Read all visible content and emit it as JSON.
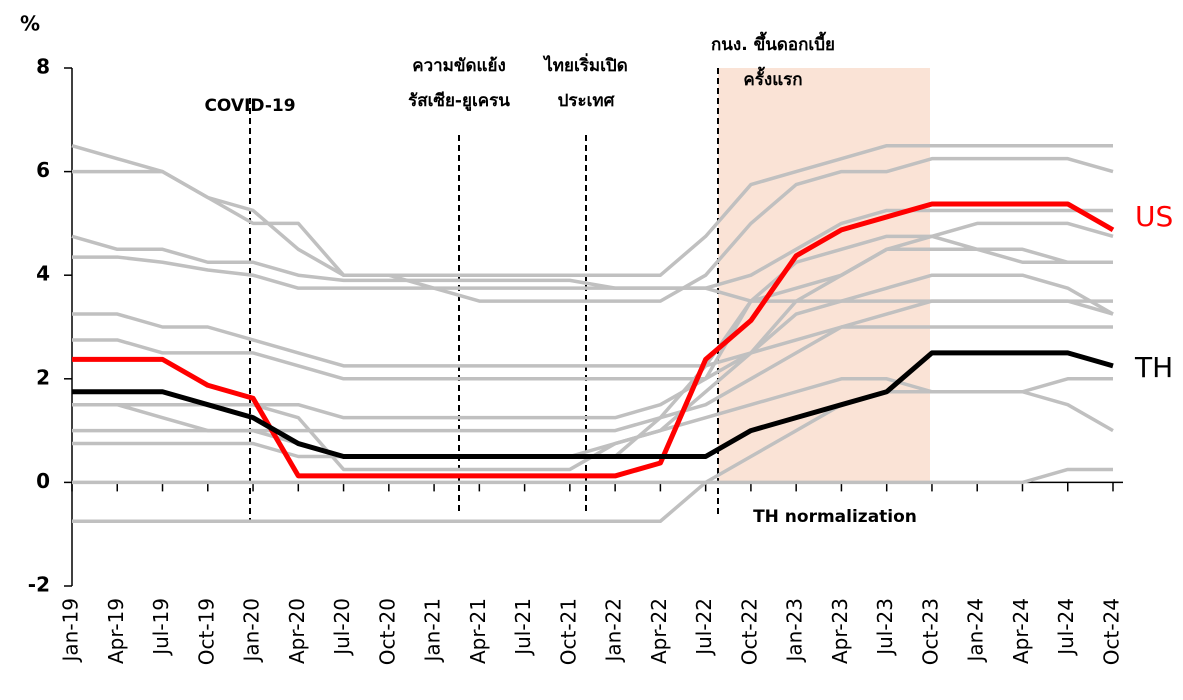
{
  "chart_data": {
    "type": "line",
    "y_label": "%",
    "categories": [
      "Jan-19",
      "Apr-19",
      "Jul-19",
      "Oct-19",
      "Jan-20",
      "Apr-20",
      "Jul-20",
      "Oct-20",
      "Jan-21",
      "Apr-21",
      "Jul-21",
      "Oct-21",
      "Jan-22",
      "Apr-22",
      "Jul-22",
      "Oct-22",
      "Jan-23",
      "Apr-23",
      "Jul-23",
      "Oct-23",
      "Jan-24",
      "Apr-24",
      "Jul-24",
      "Oct-24"
    ],
    "ylim": [
      -2,
      8
    ],
    "yticks": [
      -2,
      0,
      2,
      4,
      6,
      8
    ],
    "annotations": [
      {
        "lines": [
          "COVID-19"
        ]
      },
      {
        "lines": [
          "ความขัดแย้ง",
          "รัสเซีย-ยูเครน"
        ]
      },
      {
        "lines": [
          "ไทยเริ่มเปิด",
          "ประเทศ"
        ]
      },
      {
        "lines": [
          "กนง. ขึ้นดอกเบี้ย",
          "ครั้งแรก"
        ]
      }
    ],
    "shade_label": "TH normalization",
    "series": [
      {
        "color": "#c0c0c0",
        "values": [
          6.5,
          6.25,
          6,
          5.5,
          5.25,
          4.5,
          4,
          4,
          4,
          4,
          4,
          4,
          4,
          4,
          4.75,
          5.75,
          6,
          6.25,
          6.5,
          6.5,
          6.5,
          6.5,
          6.5,
          6.5
        ]
      },
      {
        "color": "#c0c0c0",
        "values": [
          6,
          6,
          6,
          5.5,
          5,
          5,
          4,
          4,
          3.75,
          3.5,
          3.5,
          3.5,
          3.5,
          3.5,
          4,
          5,
          5.75,
          6,
          6,
          6.25,
          6.25,
          6.25,
          6.25,
          6
        ]
      },
      {
        "color": "#c0c0c0",
        "values": [
          4.75,
          4.5,
          4.5,
          4.25,
          4.25,
          4,
          3.9,
          3.9,
          3.9,
          3.9,
          3.9,
          3.9,
          3.75,
          3.75,
          3.75,
          3.5,
          3.5,
          3.5,
          3.5,
          3.5,
          3.5,
          3.5,
          3.5,
          3.25
        ]
      },
      {
        "color": "#c0c0c0",
        "values": [
          4.35,
          4.35,
          4.25,
          4.1,
          4,
          3.75,
          3.75,
          3.75,
          3.75,
          3.75,
          3.75,
          3.75,
          3.75,
          3.75,
          3.75,
          4,
          4.5,
          5,
          5.25,
          5.25,
          5.25,
          5.25,
          5.25,
          5.25
        ]
      },
      {
        "color": "#c0c0c0",
        "values": [
          3.25,
          3.25,
          3,
          3,
          2.75,
          2.5,
          2.25,
          2.25,
          2.25,
          2.25,
          2.25,
          2.25,
          2.25,
          2.25,
          2.25,
          2.5,
          2.75,
          3,
          3,
          3,
          3,
          3,
          3,
          3
        ]
      },
      {
        "color": "#c0c0c0",
        "values": [
          2.75,
          2.75,
          2.5,
          2.5,
          2.5,
          2.25,
          2,
          2,
          2,
          2,
          2,
          2,
          2,
          2,
          2,
          2.5,
          3.5,
          4,
          4.5,
          4.75,
          5,
          5,
          5,
          4.75
        ]
      },
      {
        "color": "#c0c0c0",
        "values": [
          1.5,
          1.5,
          1.5,
          1.5,
          1.5,
          1.5,
          1.25,
          1.25,
          1.25,
          1.25,
          1.25,
          1.25,
          1.25,
          1.5,
          2,
          3.5,
          4.25,
          4.5,
          4.75,
          4.75,
          4.5,
          4.5,
          4.25,
          4.25
        ]
      },
      {
        "color": "#c0c0c0",
        "values": [
          1,
          1,
          1,
          1,
          1,
          1,
          1,
          1,
          1,
          1,
          1,
          1,
          1,
          1.25,
          1.5,
          2,
          2.5,
          3,
          3.25,
          3.5,
          3.5,
          3.5,
          3.5,
          3.5
        ]
      },
      {
        "color": "#c0c0c0",
        "values": [
          1.5,
          1.5,
          1.25,
          1,
          1,
          0.75,
          0.5,
          0.5,
          0.5,
          0.5,
          0.5,
          0.5,
          0.75,
          1,
          1.75,
          2.5,
          3.25,
          3.5,
          3.75,
          4,
          4,
          4,
          3.75,
          3.25
        ]
      },
      {
        "color": "#c0c0c0",
        "values": [
          0.75,
          0.75,
          0.75,
          0.75,
          0.75,
          0.5,
          0.5,
          0.5,
          0.5,
          0.5,
          0.5,
          0.5,
          0.5,
          1.25,
          2.25,
          3.5,
          3.75,
          4,
          4.5,
          4.5,
          4.5,
          4.25,
          4.25,
          4.25
        ]
      },
      {
        "color": "#c0c0c0",
        "values": [
          1.5,
          1.5,
          1.5,
          1.5,
          1.5,
          1.25,
          0.25,
          0.25,
          0.25,
          0.25,
          0.25,
          0.25,
          0.75,
          1,
          1.25,
          1.5,
          1.75,
          2,
          2,
          1.75,
          1.75,
          1.75,
          1.5,
          1
        ]
      },
      {
        "color": "#c0c0c0",
        "values": [
          0,
          0,
          0,
          0,
          0,
          0,
          0,
          0,
          0,
          0,
          0,
          0,
          0,
          0,
          0,
          0,
          0,
          0,
          0,
          0,
          0,
          0,
          0.25,
          0.25
        ]
      },
      {
        "color": "#c0c0c0",
        "values": [
          -0.75,
          -0.75,
          -0.75,
          -0.75,
          -0.75,
          -0.75,
          -0.75,
          -0.75,
          -0.75,
          -0.75,
          -0.75,
          -0.75,
          -0.75,
          -0.75,
          0,
          0.5,
          1,
          1.5,
          1.75,
          1.75,
          1.75,
          1.75,
          2,
          2
        ]
      },
      {
        "name": "US",
        "color": "#ff0000",
        "values": [
          2.375,
          2.375,
          2.375,
          1.875,
          1.625,
          0.125,
          0.125,
          0.125,
          0.125,
          0.125,
          0.125,
          0.125,
          0.125,
          0.375,
          2.375,
          3.125,
          4.375,
          4.875,
          5.125,
          5.375,
          5.375,
          5.375,
          5.375,
          4.875
        ]
      },
      {
        "name": "TH",
        "color": "#000000",
        "values": [
          1.75,
          1.75,
          1.75,
          1.5,
          1.25,
          0.75,
          0.5,
          0.5,
          0.5,
          0.5,
          0.5,
          0.5,
          0.5,
          0.5,
          0.5,
          1,
          1.25,
          1.5,
          1.75,
          2.5,
          2.5,
          2.5,
          2.5,
          2.25
        ]
      }
    ]
  }
}
